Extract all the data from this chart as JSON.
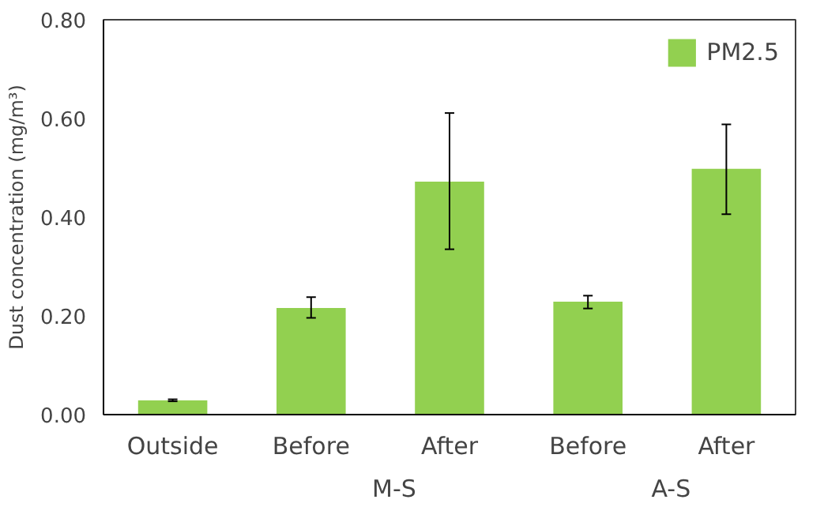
{
  "chart_data": {
    "type": "bar",
    "ylabel": "Dust concentration (mg/m³)",
    "categories": [
      "Outside",
      "Before",
      "After",
      "Before",
      "After"
    ],
    "series": [
      {
        "name": "PM2.5",
        "color": "#92d050",
        "values": [
          0.029,
          0.216,
          0.472,
          0.229,
          0.498
        ],
        "errors": [
          0.002,
          [
            0.196,
            0.238
          ],
          [
            0.335,
            0.611
          ],
          [
            0.215,
            0.241
          ],
          [
            0.406,
            0.588
          ]
        ]
      }
    ],
    "ylim": [
      0,
      0.8
    ],
    "yticks": [
      {
        "value": 0,
        "label": "0.00"
      },
      {
        "value": 0.2,
        "label": "0.20"
      },
      {
        "value": 0.4,
        "label": "0.40"
      },
      {
        "value": 0.6,
        "label": "0.60"
      },
      {
        "value": 0.8,
        "label": "0.80"
      }
    ],
    "annotations": [
      "M-S",
      "A-S"
    ],
    "legend": "top right",
    "grid": false
  }
}
